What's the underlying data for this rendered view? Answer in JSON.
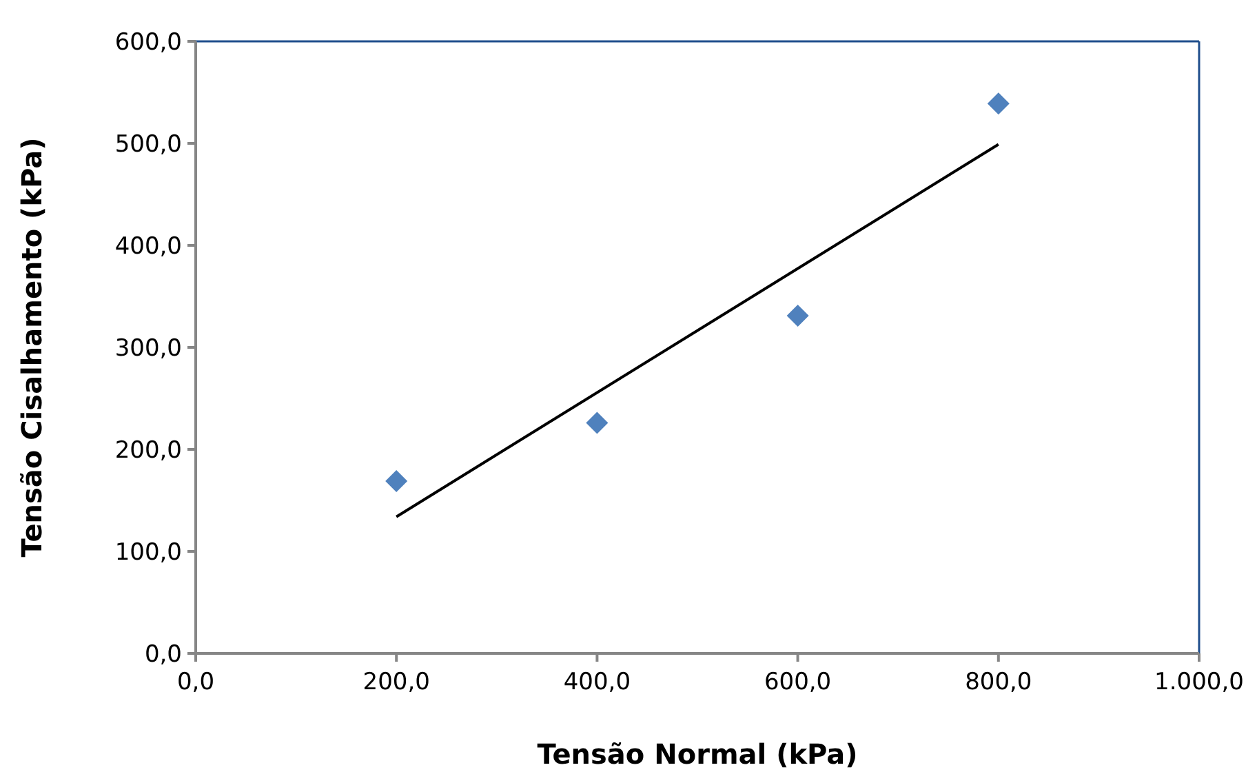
{
  "chart_data": {
    "type": "scatter",
    "xlabel": "Tensão Normal (kPa)",
    "ylabel": "Tensão Cisalhamento (kPa)",
    "x": [
      200,
      400,
      600,
      800
    ],
    "series": [
      {
        "color": "#4f81bd",
        "marker": "diamond",
        "values": [
          169,
          226,
          331,
          539
        ]
      },
      {
        "type": "line",
        "color": "#000000",
        "marker": "none",
        "x": [
          200,
          800
        ],
        "values": [
          134,
          499
        ]
      }
    ],
    "xlim": [
      0,
      1000
    ],
    "ylim": [
      0,
      600
    ],
    "xticks": [
      {
        "value": 0,
        "label": "0,0"
      },
      {
        "value": 200,
        "label": "200,0"
      },
      {
        "value": 400,
        "label": "400,0"
      },
      {
        "value": 600,
        "label": "600,0"
      },
      {
        "value": 800,
        "label": "800,0"
      },
      {
        "value": 1000,
        "label": "1.000,0"
      }
    ],
    "yticks": [
      {
        "value": 0,
        "label": "0,0"
      },
      {
        "value": 100,
        "label": "100,0"
      },
      {
        "value": 200,
        "label": "200,0"
      },
      {
        "value": 300,
        "label": "300,0"
      },
      {
        "value": 400,
        "label": "400,0"
      },
      {
        "value": 500,
        "label": "500,0"
      },
      {
        "value": 600,
        "label": "600,0"
      }
    ],
    "grid": false
  }
}
